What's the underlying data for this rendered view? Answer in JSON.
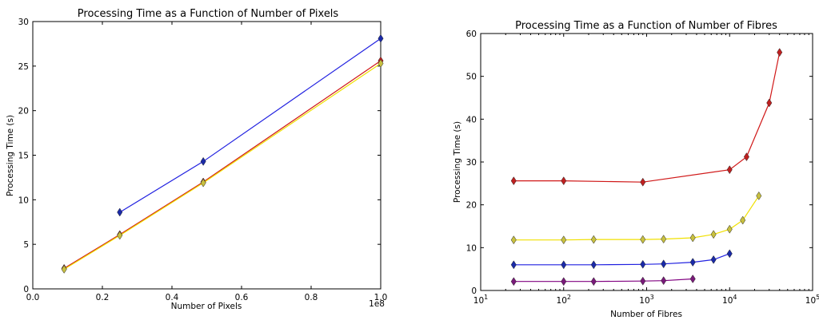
{
  "chart_data": [
    {
      "type": "line",
      "title": "Processing Time as a Function of Number of Pixels",
      "xlabel": "Number of Pixels",
      "ylabel": "Processing Time (s)",
      "x_multiplier_label": "1e8",
      "xlim": [
        0.0,
        1.0
      ],
      "ylim": [
        0,
        30
      ],
      "x_ticks": [
        "0.0",
        "0.2",
        "0.4",
        "0.6",
        "0.8",
        "1.0"
      ],
      "y_ticks": [
        "0",
        "5",
        "10",
        "15",
        "20",
        "25",
        "30"
      ],
      "grid": false,
      "series": [
        {
          "color": "#d01818",
          "marker_color": "#c02020",
          "x": [
            0.09,
            0.25,
            0.49,
            1.0
          ],
          "y": [
            2.3,
            6.1,
            12.0,
            25.6
          ]
        },
        {
          "color": "#f0e000",
          "marker_color": "#c8c040",
          "x": [
            0.09,
            0.25,
            0.49,
            1.0
          ],
          "y": [
            2.2,
            6.0,
            11.9,
            25.3
          ]
        },
        {
          "color": "#2020e0",
          "marker_color": "#1a2aa8",
          "x": [
            0.25,
            0.49,
            1.0
          ],
          "y": [
            8.6,
            14.3,
            28.1
          ]
        }
      ]
    },
    {
      "type": "line",
      "title": "Processing Time as a Function of Number of Fibres",
      "xlabel": "Number of Fibres",
      "ylabel": "Processing Time (s)",
      "x_scale": "log",
      "xlim": [
        10,
        100000
      ],
      "ylim": [
        0,
        60
      ],
      "x_ticks": [
        {
          "base": "10",
          "exp": "1"
        },
        {
          "base": "10",
          "exp": "2"
        },
        {
          "base": "10",
          "exp": "3"
        },
        {
          "base": "10",
          "exp": "4"
        },
        {
          "base": "10",
          "exp": "5"
        }
      ],
      "y_ticks": [
        "0",
        "10",
        "20",
        "30",
        "40",
        "50",
        "60"
      ],
      "grid": false,
      "series": [
        {
          "color": "#d01818",
          "marker_color": "#c02020",
          "x": [
            25,
            100,
            900,
            10000,
            16000,
            30000,
            40000
          ],
          "y": [
            25.6,
            25.6,
            25.3,
            28.2,
            31.2,
            43.8,
            55.6
          ]
        },
        {
          "color": "#f0e000",
          "marker_color": "#c8c040",
          "x": [
            25,
            100,
            230,
            900,
            1600,
            3600,
            6400,
            10000,
            14400,
            22500
          ],
          "y": [
            11.8,
            11.8,
            11.9,
            11.9,
            12.0,
            12.3,
            13.1,
            14.3,
            16.4,
            22.1
          ]
        },
        {
          "color": "#2020e0",
          "marker_color": "#1a2aa8",
          "x": [
            25,
            100,
            230,
            900,
            1600,
            3600,
            6400,
            10000
          ],
          "y": [
            6.0,
            6.0,
            6.0,
            6.1,
            6.2,
            6.6,
            7.2,
            8.6
          ]
        },
        {
          "color": "#800080",
          "marker_color": "#7a1a7a",
          "x": [
            25,
            100,
            230,
            900,
            1600,
            3600
          ],
          "y": [
            2.1,
            2.1,
            2.1,
            2.2,
            2.3,
            2.7
          ]
        }
      ]
    }
  ]
}
